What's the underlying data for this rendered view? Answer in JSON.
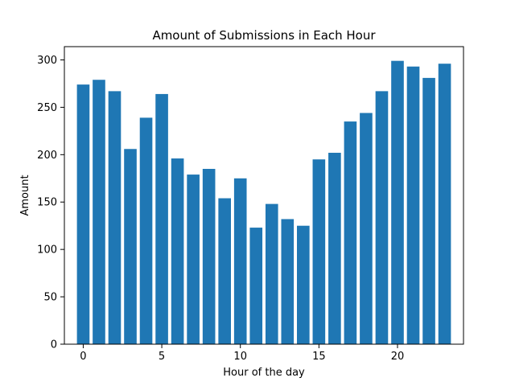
{
  "chart_data": {
    "type": "bar",
    "title": "Amount of Submissions in Each Hour",
    "xlabel": "Hour of the day",
    "ylabel": "Amount",
    "categories": [
      0,
      1,
      2,
      3,
      4,
      5,
      6,
      7,
      8,
      9,
      10,
      11,
      12,
      13,
      14,
      15,
      16,
      17,
      18,
      19,
      20,
      21,
      22,
      23
    ],
    "values": [
      274,
      279,
      267,
      206,
      239,
      264,
      196,
      179,
      185,
      154,
      175,
      123,
      148,
      132,
      125,
      195,
      202,
      235,
      244,
      267,
      299,
      293,
      281,
      296
    ],
    "xlim": [
      -1.2,
      24.2
    ],
    "ylim": [
      0,
      314
    ],
    "xticks": [
      0,
      5,
      10,
      15,
      20
    ],
    "yticks": [
      0,
      50,
      100,
      150,
      200,
      250,
      300
    ],
    "bar_color": "#1f77b4",
    "grid": false,
    "legend": "none"
  }
}
